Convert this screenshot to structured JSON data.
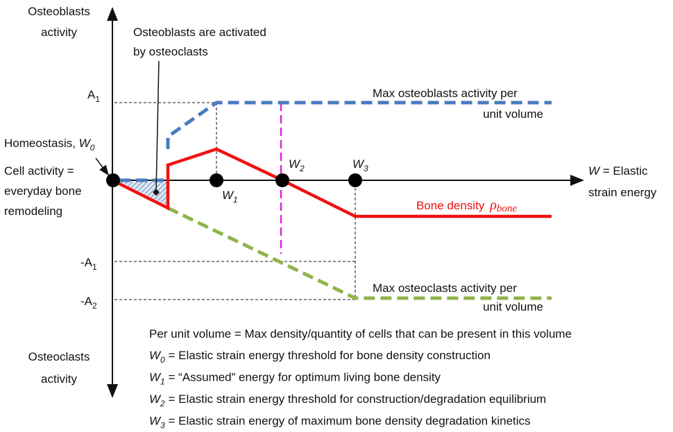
{
  "axes": {
    "y_top": [
      "Osteoblasts",
      "activity"
    ],
    "y_bottom": [
      "Osteoclasts",
      "activity"
    ],
    "x": {
      "symbol": "W",
      "text": " = Elastic",
      "line2": "strain energy"
    }
  },
  "annotation": [
    "Osteoblasts are activated",
    "by osteoclasts"
  ],
  "levels": {
    "a1": {
      "main": "A",
      "sub": "1"
    },
    "neg_a1": {
      "main": "-A",
      "sub": "1"
    },
    "neg_a2": {
      "main": "-A",
      "sub": "2"
    }
  },
  "homeostasis": {
    "text": "Homeostasis, ",
    "symbol": "W",
    "sub": "0"
  },
  "cell_activity": [
    "Cell activity =",
    "everyday bone",
    "remodeling"
  ],
  "points": [
    {
      "symbol": "W",
      "sub": "1"
    },
    {
      "symbol": "W",
      "sub": "2"
    },
    {
      "symbol": "W",
      "sub": "3"
    }
  ],
  "curves": {
    "osteoblasts": [
      "Max osteoblasts activity per",
      "unit volume"
    ],
    "bone_density": {
      "text": "Bone density",
      "symbol": "ρ",
      "sub": "bone"
    },
    "osteoclasts": [
      "Max osteoclasts activity per",
      "unit volume"
    ]
  },
  "legend": {
    "intro": "Per unit volume = Max density/quantity of cells that can be present in this volume",
    "items": [
      {
        "symbol": "W",
        "sub": "0",
        "text": " = Elastic strain energy threshold for bone density construction"
      },
      {
        "symbol": "W",
        "sub": "1",
        "text": " = “Assumed” energy for optimum living bone density"
      },
      {
        "symbol": "W",
        "sub": "2",
        "text": " = Elastic strain energy threshold for construction/degradation equilibrium"
      },
      {
        "symbol": "W",
        "sub": "3",
        "text": " = Elastic strain energy of maximum bone density degradation kinetics"
      }
    ]
  }
}
